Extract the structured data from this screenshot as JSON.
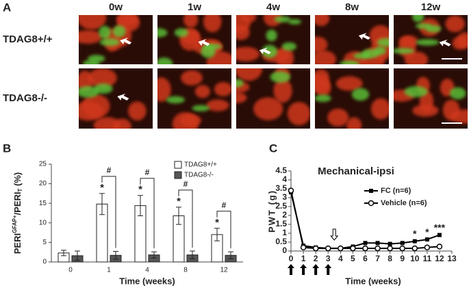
{
  "panel_a": {
    "letter": "A",
    "columns": [
      "0w",
      "1w",
      "4w",
      "8w",
      "12w"
    ],
    "rows": [
      "TDAG8+/+",
      "TDAG8-/-"
    ]
  },
  "chart_data": [
    {
      "type": "bar",
      "letter": "B",
      "y_label_parts": [
        "PERI",
        "GFAP+",
        "/PERI",
        "T",
        " (%)"
      ],
      "x_label": "Time (weeks)",
      "categories": [
        "0",
        "1",
        "4",
        "8",
        "12"
      ],
      "series": [
        {
          "name": "TDAG8+/+",
          "color": "#ffffff",
          "values": [
            2.3,
            14.8,
            14.4,
            11.8,
            7.0
          ],
          "errors": [
            0.7,
            2.7,
            2.6,
            2.2,
            1.6
          ]
        },
        {
          "name": "TDAG8-/-",
          "color": "#555555",
          "values": [
            1.6,
            1.7,
            1.8,
            1.8,
            1.7
          ],
          "errors": [
            1.2,
            1.0,
            0.8,
            1.0,
            0.9
          ]
        }
      ],
      "star_labels": [
        null,
        "*",
        "*",
        "*",
        "*"
      ],
      "hash_labels": [
        null,
        "#",
        "#",
        "#",
        "#"
      ],
      "ylim": [
        0,
        25
      ],
      "yticks": [
        0,
        5,
        10,
        15,
        20,
        25
      ],
      "legend": "top-right",
      "grid": false
    },
    {
      "type": "line",
      "letter": "C",
      "title": "Mechanical-ipsi",
      "y_label": "PWT (g)",
      "x_label": "Time (weeks)",
      "x": [
        0,
        1,
        2,
        3,
        4,
        5,
        6,
        7,
        8,
        9,
        10,
        11,
        12
      ],
      "series": [
        {
          "name": "FC (n=6)",
          "color": "#000000",
          "marker": "square",
          "values": [
            3.3,
            0.3,
            0.2,
            0.15,
            0.15,
            0.25,
            0.45,
            0.45,
            0.4,
            0.45,
            0.55,
            0.65,
            0.9
          ]
        },
        {
          "name": "Vehicle (n=6)",
          "color": "#000000",
          "marker": "open-circle",
          "values": [
            3.4,
            0.2,
            0.15,
            0.15,
            0.15,
            0.15,
            0.15,
            0.15,
            0.15,
            0.15,
            0.15,
            0.2,
            0.25
          ]
        }
      ],
      "annotations": [
        {
          "x": 10,
          "text": "*"
        },
        {
          "x": 11,
          "text": "*"
        },
        {
          "x": 12,
          "text": "***"
        }
      ],
      "injection_arrows_x": [
        0,
        1,
        2,
        3
      ],
      "open_arrow_x": [
        3
      ],
      "xlim": [
        0,
        13
      ],
      "xticks": [
        0,
        1,
        2,
        3,
        4,
        5,
        6,
        7,
        8,
        9,
        10,
        11,
        12,
        13
      ],
      "ylim": [
        0,
        4.5
      ],
      "yticks": [
        0,
        0.5,
        1,
        1.5,
        2,
        2.5,
        3,
        3.5,
        4,
        4.5
      ],
      "legend": "right",
      "grid": false
    }
  ]
}
